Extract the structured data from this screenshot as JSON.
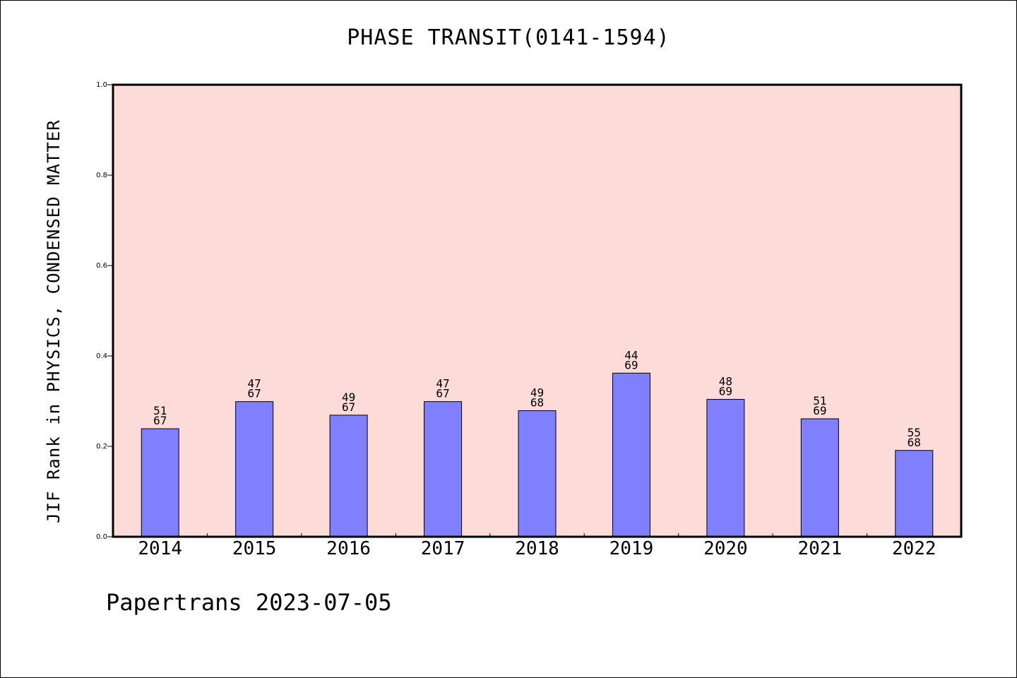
{
  "chart_data": {
    "type": "bar",
    "title": "PHASE TRANSIT(0141-1594)",
    "xlabel": "",
    "ylabel": "JIF Rank in PHYSICS, CONDENSED MATTER",
    "ylim": [
      0.0,
      1.0
    ],
    "yticks": [
      "0.0",
      "0.2",
      "0.4",
      "0.6",
      "0.8",
      "1.0"
    ],
    "categories": [
      "2014",
      "2015",
      "2016",
      "2017",
      "2018",
      "2019",
      "2020",
      "2021",
      "2022"
    ],
    "values": [
      0.239,
      0.299,
      0.269,
      0.299,
      0.279,
      0.362,
      0.304,
      0.261,
      0.191
    ],
    "rank": [
      "51",
      "47",
      "49",
      "47",
      "49",
      "44",
      "48",
      "51",
      "55"
    ],
    "total": [
      "67",
      "67",
      "67",
      "67",
      "68",
      "69",
      "69",
      "69",
      "68"
    ],
    "grid": false,
    "legend": "none",
    "colors": {
      "plot_background": "#fddbd8",
      "bar_fill": "#8080ff",
      "bar_stroke": "#000000"
    }
  },
  "footer": {
    "credit": "Papertrans 2023-07-05"
  }
}
